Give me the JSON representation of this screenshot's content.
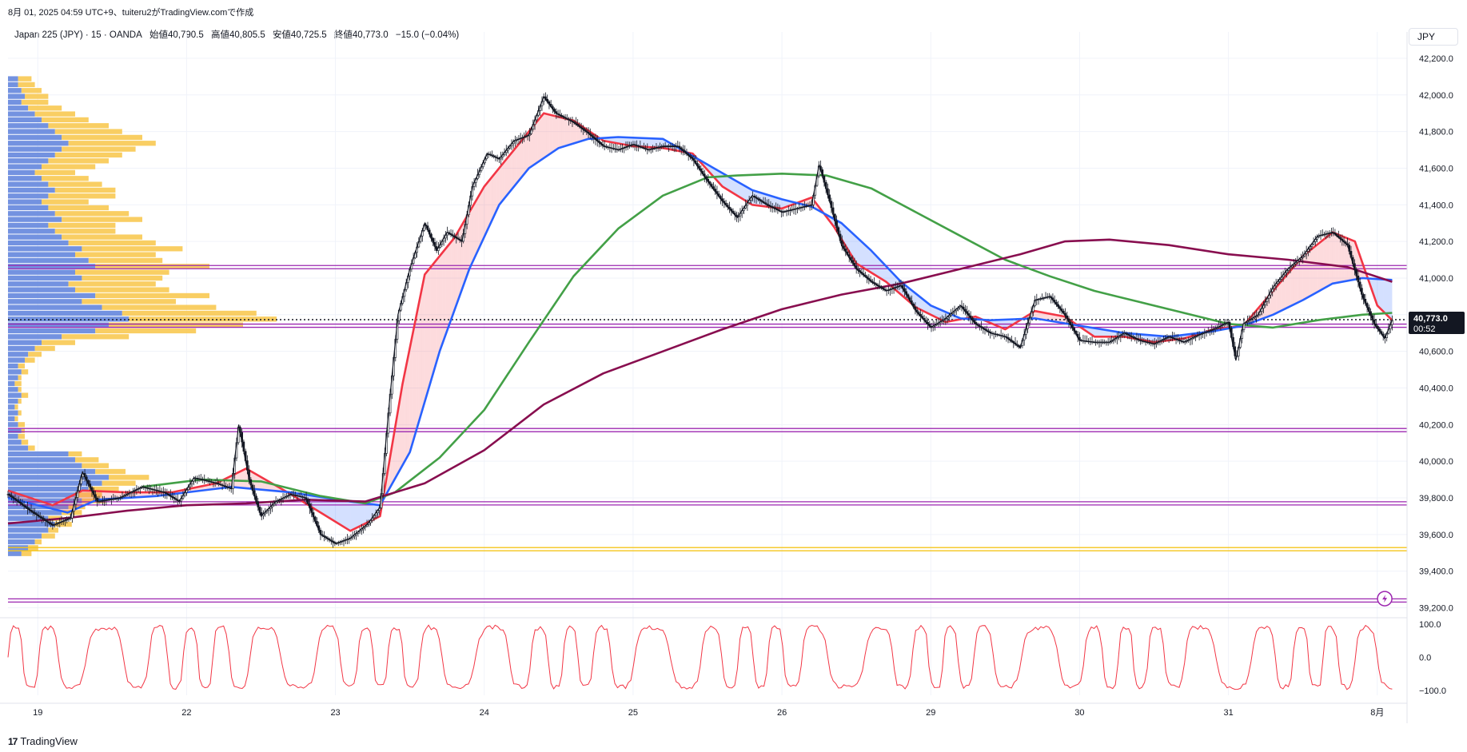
{
  "header": {
    "created_line": "8月 01, 2025 04:59 UTC+9、tuiteru2がTradingView.comで作成",
    "symbol": "Japan 225 (JPY) · 15 · OANDA",
    "open_label": "始値40,790.5",
    "high_label": "高値40,805.5",
    "low_label": "安値40,725.5",
    "close_label": "終値40,773.0",
    "change_label": "−15.0 (−0.04%)",
    "currency": "JPY"
  },
  "price_tag": {
    "price": "40,773.0",
    "countdown": "00:52"
  },
  "footer": {
    "logo_text": "TradingView",
    "logo_mark": "17"
  },
  "colors": {
    "ema_fast": "#f23645",
    "ema_mid": "#2962ff",
    "ema_green": "#43a047",
    "ema_slow": "#880e4f",
    "fill_red": "rgba(242,54,69,0.18)",
    "fill_blue": "rgba(41,98,255,0.2)",
    "hline_purple": "#9c27b0",
    "hline_yellow": "#f5c518",
    "vp_blue": "#5b7fdb",
    "vp_yellow": "#f8c548",
    "oscillator": "#f23645"
  },
  "chart_data": {
    "type": "line",
    "title": "",
    "xlabel": "",
    "ylabel": "",
    "ylim": [
      39150,
      42300
    ],
    "y_ticks": [
      "42,200.0",
      "42,000.0",
      "41,800.0",
      "41,600.0",
      "41,400.0",
      "41,200.0",
      "41,000.0",
      "40,800.0",
      "40,600.0",
      "40,400.0",
      "40,200.0",
      "40,000.0",
      "39,800.0",
      "39,600.0",
      "39,400.0",
      "39,200.0"
    ],
    "x_ticks": [
      "19",
      "22",
      "23",
      "24",
      "25",
      "26",
      "29",
      "30",
      "31",
      "8月"
    ],
    "x_tick_pos": [
      0.2,
      1.2,
      2.2,
      3.2,
      4.2,
      5.2,
      6.2,
      7.2,
      8.2,
      9.2
    ],
    "x_range": [
      0,
      9.4
    ],
    "price_series": [
      [
        0,
        39820
      ],
      [
        0.15,
        39730
      ],
      [
        0.3,
        39650
      ],
      [
        0.42,
        39690
      ],
      [
        0.5,
        39940
      ],
      [
        0.6,
        39780
      ],
      [
        0.75,
        39800
      ],
      [
        0.9,
        39860
      ],
      [
        1.05,
        39830
      ],
      [
        1.15,
        39780
      ],
      [
        1.25,
        39910
      ],
      [
        1.4,
        39880
      ],
      [
        1.5,
        39850
      ],
      [
        1.55,
        40200
      ],
      [
        1.62,
        39900
      ],
      [
        1.7,
        39700
      ],
      [
        1.8,
        39780
      ],
      [
        1.9,
        39820
      ],
      [
        2.0,
        39800
      ],
      [
        2.1,
        39600
      ],
      [
        2.2,
        39550
      ],
      [
        2.3,
        39580
      ],
      [
        2.42,
        39660
      ],
      [
        2.5,
        39750
      ],
      [
        2.56,
        40300
      ],
      [
        2.62,
        40800
      ],
      [
        2.7,
        41050
      ],
      [
        2.8,
        41300
      ],
      [
        2.88,
        41150
      ],
      [
        2.95,
        41250
      ],
      [
        3.05,
        41200
      ],
      [
        3.12,
        41500
      ],
      [
        3.22,
        41680
      ],
      [
        3.3,
        41650
      ],
      [
        3.4,
        41750
      ],
      [
        3.5,
        41780
      ],
      [
        3.6,
        41990
      ],
      [
        3.68,
        41900
      ],
      [
        3.8,
        41850
      ],
      [
        3.9,
        41790
      ],
      [
        4.0,
        41720
      ],
      [
        4.1,
        41700
      ],
      [
        4.2,
        41730
      ],
      [
        4.3,
        41700
      ],
      [
        4.4,
        41720
      ],
      [
        4.5,
        41720
      ],
      [
        4.6,
        41650
      ],
      [
        4.7,
        41530
      ],
      [
        4.8,
        41420
      ],
      [
        4.9,
        41330
      ],
      [
        5.0,
        41450
      ],
      [
        5.1,
        41400
      ],
      [
        5.2,
        41360
      ],
      [
        5.3,
        41380
      ],
      [
        5.4,
        41400
      ],
      [
        5.45,
        41620
      ],
      [
        5.52,
        41420
      ],
      [
        5.6,
        41180
      ],
      [
        5.7,
        41050
      ],
      [
        5.8,
        40980
      ],
      [
        5.9,
        40930
      ],
      [
        6.0,
        40960
      ],
      [
        6.1,
        40820
      ],
      [
        6.2,
        40730
      ],
      [
        6.3,
        40780
      ],
      [
        6.4,
        40850
      ],
      [
        6.5,
        40750
      ],
      [
        6.6,
        40700
      ],
      [
        6.7,
        40680
      ],
      [
        6.8,
        40620
      ],
      [
        6.9,
        40880
      ],
      [
        7.0,
        40900
      ],
      [
        7.1,
        40800
      ],
      [
        7.2,
        40660
      ],
      [
        7.3,
        40650
      ],
      [
        7.4,
        40650
      ],
      [
        7.5,
        40700
      ],
      [
        7.6,
        40660
      ],
      [
        7.7,
        40640
      ],
      [
        7.8,
        40680
      ],
      [
        7.9,
        40650
      ],
      [
        8.0,
        40690
      ],
      [
        8.1,
        40720
      ],
      [
        8.2,
        40760
      ],
      [
        8.25,
        40550
      ],
      [
        8.3,
        40750
      ],
      [
        8.4,
        40800
      ],
      [
        8.5,
        40950
      ],
      [
        8.6,
        41050
      ],
      [
        8.7,
        41120
      ],
      [
        8.8,
        41230
      ],
      [
        8.9,
        41250
      ],
      [
        9.0,
        41180
      ],
      [
        9.1,
        40900
      ],
      [
        9.18,
        40750
      ],
      [
        9.25,
        40670
      ],
      [
        9.3,
        40770
      ]
    ],
    "series": [
      {
        "name": "",
        "values": [
          [
            0,
            39840
          ],
          [
            0.3,
            39760
          ],
          [
            0.5,
            39840
          ],
          [
            0.8,
            39830
          ],
          [
            1.1,
            39830
          ],
          [
            1.4,
            39880
          ],
          [
            1.6,
            39960
          ],
          [
            1.9,
            39820
          ],
          [
            2.1,
            39720
          ],
          [
            2.3,
            39620
          ],
          [
            2.5,
            39700
          ],
          [
            2.65,
            40420
          ],
          [
            2.8,
            41020
          ],
          [
            3.0,
            41220
          ],
          [
            3.2,
            41500
          ],
          [
            3.4,
            41700
          ],
          [
            3.6,
            41900
          ],
          [
            3.8,
            41860
          ],
          [
            4.0,
            41750
          ],
          [
            4.2,
            41720
          ],
          [
            4.4,
            41710
          ],
          [
            4.6,
            41680
          ],
          [
            4.8,
            41500
          ],
          [
            5.0,
            41400
          ],
          [
            5.2,
            41380
          ],
          [
            5.4,
            41440
          ],
          [
            5.55,
            41280
          ],
          [
            5.7,
            41080
          ],
          [
            5.9,
            40980
          ],
          [
            6.1,
            40840
          ],
          [
            6.3,
            40760
          ],
          [
            6.5,
            40790
          ],
          [
            6.7,
            40720
          ],
          [
            6.9,
            40820
          ],
          [
            7.1,
            40790
          ],
          [
            7.3,
            40680
          ],
          [
            7.5,
            40680
          ],
          [
            7.7,
            40650
          ],
          [
            7.9,
            40670
          ],
          [
            8.1,
            40720
          ],
          [
            8.3,
            40740
          ],
          [
            8.5,
            40930
          ],
          [
            8.7,
            41120
          ],
          [
            8.9,
            41250
          ],
          [
            9.05,
            41200
          ],
          [
            9.2,
            40850
          ],
          [
            9.3,
            40770
          ]
        ]
      },
      {
        "name": "",
        "values": [
          [
            0,
            39800
          ],
          [
            0.4,
            39720
          ],
          [
            0.6,
            39790
          ],
          [
            1.0,
            39810
          ],
          [
            1.5,
            39860
          ],
          [
            1.9,
            39830
          ],
          [
            2.3,
            39780
          ],
          [
            2.5,
            39760
          ],
          [
            2.7,
            40050
          ],
          [
            2.9,
            40600
          ],
          [
            3.1,
            41050
          ],
          [
            3.3,
            41400
          ],
          [
            3.5,
            41600
          ],
          [
            3.7,
            41710
          ],
          [
            3.9,
            41760
          ],
          [
            4.1,
            41770
          ],
          [
            4.4,
            41760
          ],
          [
            4.7,
            41620
          ],
          [
            5.0,
            41480
          ],
          [
            5.2,
            41430
          ],
          [
            5.4,
            41390
          ],
          [
            5.6,
            41300
          ],
          [
            5.8,
            41150
          ],
          [
            6.0,
            40980
          ],
          [
            6.2,
            40850
          ],
          [
            6.4,
            40780
          ],
          [
            6.6,
            40770
          ],
          [
            6.9,
            40780
          ],
          [
            7.2,
            40740
          ],
          [
            7.5,
            40700
          ],
          [
            7.8,
            40680
          ],
          [
            8.1,
            40710
          ],
          [
            8.3,
            40740
          ],
          [
            8.5,
            40800
          ],
          [
            8.7,
            40880
          ],
          [
            8.9,
            40970
          ],
          [
            9.1,
            41000
          ],
          [
            9.3,
            40990
          ]
        ]
      },
      {
        "name": "",
        "values": [
          [
            0.9,
            39860
          ],
          [
            1.3,
            39900
          ],
          [
            1.7,
            39890
          ],
          [
            2.1,
            39810
          ],
          [
            2.4,
            39770
          ],
          [
            2.6,
            39830
          ],
          [
            2.9,
            40020
          ],
          [
            3.2,
            40280
          ],
          [
            3.5,
            40650
          ],
          [
            3.8,
            41010
          ],
          [
            4.1,
            41270
          ],
          [
            4.4,
            41450
          ],
          [
            4.7,
            41550
          ],
          [
            4.9,
            41560
          ],
          [
            5.2,
            41570
          ],
          [
            5.5,
            41560
          ],
          [
            5.8,
            41490
          ],
          [
            6.1,
            41360
          ],
          [
            6.4,
            41230
          ],
          [
            6.7,
            41100
          ],
          [
            7.0,
            41010
          ],
          [
            7.3,
            40930
          ],
          [
            7.6,
            40870
          ],
          [
            7.9,
            40810
          ],
          [
            8.2,
            40750
          ],
          [
            8.5,
            40730
          ],
          [
            8.8,
            40770
          ],
          [
            9.1,
            40800
          ],
          [
            9.3,
            40810
          ]
        ]
      },
      {
        "name": "",
        "values": [
          [
            0,
            39660
          ],
          [
            0.4,
            39690
          ],
          [
            0.8,
            39730
          ],
          [
            1.2,
            39760
          ],
          [
            1.6,
            39770
          ],
          [
            2.0,
            39790
          ],
          [
            2.4,
            39780
          ],
          [
            2.8,
            39880
          ],
          [
            3.2,
            40060
          ],
          [
            3.6,
            40310
          ],
          [
            4.0,
            40480
          ],
          [
            4.4,
            40600
          ],
          [
            4.8,
            40720
          ],
          [
            5.2,
            40830
          ],
          [
            5.6,
            40910
          ],
          [
            6.0,
            40970
          ],
          [
            6.4,
            41050
          ],
          [
            6.8,
            41130
          ],
          [
            7.1,
            41200
          ],
          [
            7.4,
            41210
          ],
          [
            7.8,
            41180
          ],
          [
            8.2,
            41130
          ],
          [
            8.6,
            41100
          ],
          [
            9.0,
            41060
          ],
          [
            9.3,
            40980
          ]
        ]
      }
    ],
    "horizontal_levels": [
      {
        "value": 41060,
        "kind": "purple"
      },
      {
        "value": 40740,
        "kind": "purple"
      },
      {
        "value": 40170,
        "kind": "purple"
      },
      {
        "value": 39770,
        "kind": "purple"
      },
      {
        "value": 39520,
        "kind": "yellow"
      },
      {
        "value": 39240,
        "kind": "purple"
      }
    ],
    "current_price": 40773,
    "volume_profile": {
      "price_start": 39480,
      "price_step": 32,
      "bins": [
        [
          4,
          3
        ],
        [
          6,
          3
        ],
        [
          8,
          2
        ],
        [
          10,
          4
        ],
        [
          12,
          3
        ],
        [
          14,
          5
        ],
        [
          12,
          4
        ],
        [
          16,
          6
        ],
        [
          18,
          5
        ],
        [
          22,
          7
        ],
        [
          20,
          8
        ],
        [
          24,
          9
        ],
        [
          28,
          10
        ],
        [
          30,
          12
        ],
        [
          26,
          9
        ],
        [
          22,
          8
        ],
        [
          20,
          7
        ],
        [
          18,
          4
        ],
        [
          6,
          2
        ],
        [
          4,
          2
        ],
        [
          3,
          2
        ],
        [
          4,
          1
        ],
        [
          3,
          2
        ],
        [
          2,
          1
        ],
        [
          3,
          1
        ],
        [
          2,
          1
        ],
        [
          3,
          1
        ],
        [
          4,
          2
        ],
        [
          3,
          1
        ],
        [
          2,
          2
        ],
        [
          3,
          1
        ],
        [
          4,
          2
        ],
        [
          3,
          2
        ],
        [
          5,
          3
        ],
        [
          6,
          4
        ],
        [
          8,
          6
        ],
        [
          10,
          10
        ],
        [
          16,
          20
        ],
        [
          26,
          30
        ],
        [
          30,
          40
        ],
        [
          36,
          44
        ],
        [
          34,
          40
        ],
        [
          28,
          34
        ],
        [
          22,
          28
        ],
        [
          26,
          34
        ],
        [
          20,
          28
        ],
        [
          18,
          26
        ],
        [
          22,
          24
        ],
        [
          20,
          28
        ],
        [
          26,
          34
        ],
        [
          24,
          22
        ],
        [
          20,
          24
        ],
        [
          22,
          30
        ],
        [
          18,
          26
        ],
        [
          16,
          24
        ],
        [
          14,
          18
        ],
        [
          12,
          20
        ],
        [
          16,
          24
        ],
        [
          14,
          22
        ],
        [
          12,
          18
        ],
        [
          10,
          14
        ],
        [
          12,
          20
        ],
        [
          14,
          18
        ],
        [
          12,
          16
        ],
        [
          10,
          14
        ],
        [
          8,
          12
        ],
        [
          10,
          16
        ],
        [
          12,
          18
        ],
        [
          14,
          20
        ],
        [
          16,
          22
        ],
        [
          18,
          26
        ],
        [
          16,
          24
        ],
        [
          14,
          20
        ],
        [
          12,
          18
        ],
        [
          10,
          14
        ],
        [
          8,
          12
        ],
        [
          6,
          10
        ],
        [
          4,
          8
        ],
        [
          5,
          7
        ],
        [
          4,
          6
        ],
        [
          3,
          5
        ],
        [
          3,
          4
        ]
      ]
    },
    "oscillator": {
      "ylim": [
        -115,
        115
      ],
      "y_ticks": [
        "100.0",
        "0.0",
        "−100.0"
      ],
      "tick_values": [
        100,
        0,
        -100
      ]
    }
  }
}
